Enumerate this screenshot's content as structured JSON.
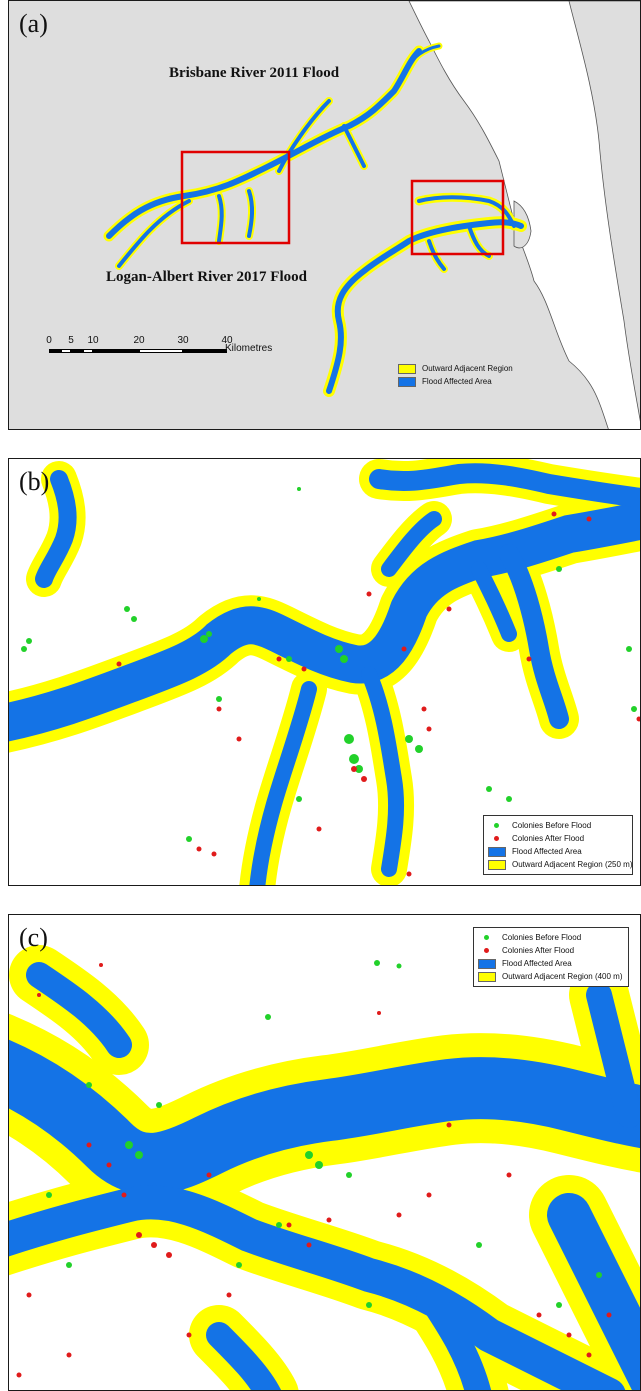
{
  "panel_a": {
    "label": "(a)",
    "title_north": "Brisbane River 2011 Flood",
    "title_south": "Logan-Albert River 2017 Flood",
    "scale": {
      "ticks": [
        "0",
        "5",
        "10",
        "20",
        "30",
        "40"
      ],
      "unit": "Kilometres"
    },
    "legend": [
      {
        "label": "Outward Adjacent Region",
        "color": "#ffff00"
      },
      {
        "label": "Flood Affected Area",
        "color": "#1473e6"
      }
    ]
  },
  "panel_b": {
    "label": "(b)",
    "legend": [
      {
        "label": "Colonies Before Flood",
        "color": "#22d12a",
        "kind": "dot"
      },
      {
        "label": "Colonies After Flood",
        "color": "#e01b1b",
        "kind": "dot"
      },
      {
        "label": "Flood Affected Area",
        "color": "#1473e6",
        "kind": "box"
      },
      {
        "label": "Outward Adjacent Region (250 m)",
        "color": "#ffff00",
        "kind": "box"
      }
    ]
  },
  "panel_c": {
    "label": "(c)",
    "legend": [
      {
        "label": "Colonies Before Flood",
        "color": "#22d12a",
        "kind": "dot"
      },
      {
        "label": "Colonies After Flood",
        "color": "#e01b1b",
        "kind": "dot"
      },
      {
        "label": "Flood Affected Area",
        "color": "#1473e6",
        "kind": "box"
      },
      {
        "label": "Outward Adjacent Region (400 m)",
        "color": "#ffff00",
        "kind": "box"
      }
    ]
  },
  "colors": {
    "flood": "#1473e6",
    "buffer": "#ffff00",
    "land": "#dedede",
    "colony_before": "#22d12a",
    "colony_after": "#e01b1b",
    "highlight_box": "#e00000"
  }
}
